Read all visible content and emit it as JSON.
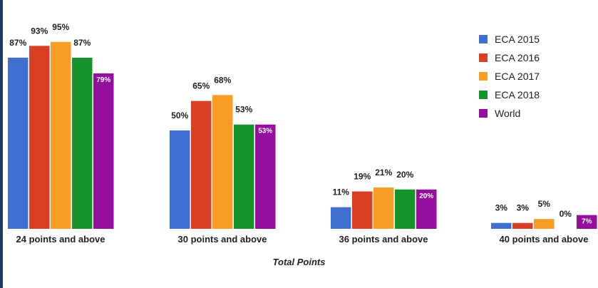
{
  "chart_data": {
    "type": "bar",
    "title": "",
    "xlabel": "Total Points",
    "ylabel": "",
    "ylim": [
      0,
      100
    ],
    "grid": false,
    "legend_position": "right",
    "categories": [
      "24 points and above",
      "30 points and above",
      "36 points and above",
      "40 points and above"
    ],
    "series": [
      {
        "name": "ECA 2015",
        "color": "#3f6fd1",
        "values": [
          87,
          50,
          11,
          3
        ],
        "labels": [
          "87%",
          "50%",
          "11%",
          "3%"
        ]
      },
      {
        "name": "ECA 2016",
        "color": "#d93f24",
        "values": [
          93,
          65,
          19,
          3
        ],
        "labels": [
          "93%",
          "65%",
          "19%",
          "3%"
        ]
      },
      {
        "name": "ECA 2017",
        "color": "#f99d26",
        "values": [
          95,
          68,
          21,
          5
        ],
        "labels": [
          "95%",
          "68%",
          "21%",
          "5%"
        ]
      },
      {
        "name": "ECA 2018",
        "color": "#17932b",
        "values": [
          87,
          53,
          20,
          0
        ],
        "labels": [
          "87%",
          "53%",
          "20%",
          "0%"
        ]
      },
      {
        "name": "World",
        "color": "#950e9d",
        "values": [
          79,
          53,
          20,
          7
        ],
        "labels": [
          "79%",
          "53%",
          "20%",
          "7%"
        ]
      }
    ]
  }
}
